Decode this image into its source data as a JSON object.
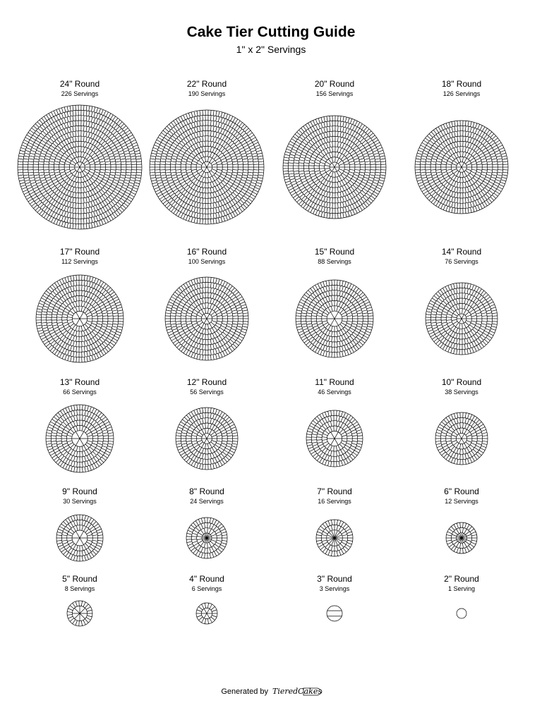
{
  "header": {
    "title": "Cake Tier Cutting Guide",
    "subtitle": "1\" x 2\" Servings"
  },
  "cakes": [
    {
      "label": "24\" Round",
      "servings": "226 Servings"
    },
    {
      "label": "22\" Round",
      "servings": "190 Servings"
    },
    {
      "label": "20\" Round",
      "servings": "156 Servings"
    },
    {
      "label": "18\" Round",
      "servings": "126 Servings"
    },
    {
      "label": "17\" Round",
      "servings": "112 Servings"
    },
    {
      "label": "16\" Round",
      "servings": "100 Servings"
    },
    {
      "label": "15\" Round",
      "servings": "88 Servings"
    },
    {
      "label": "14\" Round",
      "servings": "76 Servings"
    },
    {
      "label": "13\" Round",
      "servings": "66 Servings"
    },
    {
      "label": "12\" Round",
      "servings": "56 Servings"
    },
    {
      "label": "11\" Round",
      "servings": "46 Servings"
    },
    {
      "label": "10\" Round",
      "servings": "38 Servings"
    },
    {
      "label": "9\" Round",
      "servings": "30 Servings"
    },
    {
      "label": "8\" Round",
      "servings": "24 Servings"
    },
    {
      "label": "7\" Round",
      "servings": "16 Servings"
    },
    {
      "label": "6\" Round",
      "servings": "12 Servings"
    },
    {
      "label": "5\" Round",
      "servings": "8 Servings"
    },
    {
      "label": "4\" Round",
      "servings": "6 Servings"
    },
    {
      "label": "3\" Round",
      "servings": "3 Servings"
    },
    {
      "label": "2\" Round",
      "servings": "1 Serving"
    }
  ],
  "footer": {
    "text": "Generated by",
    "logo": "TieredCakes"
  }
}
